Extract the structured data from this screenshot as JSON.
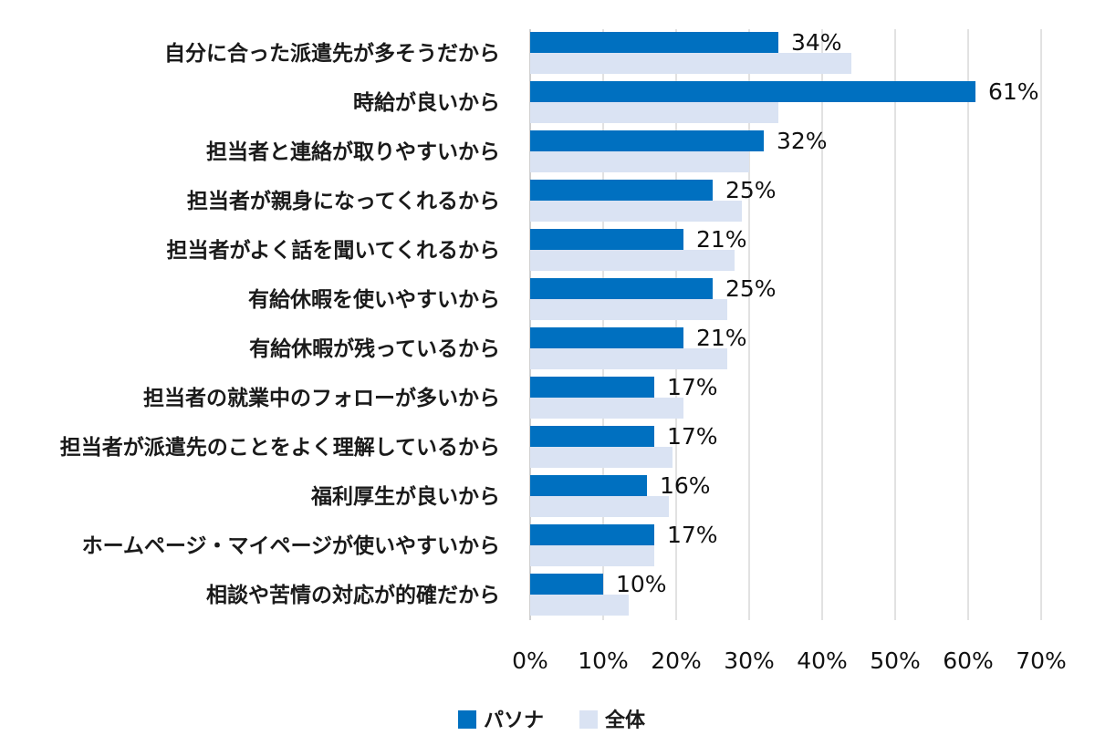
{
  "chart_data": {
    "type": "bar",
    "orientation": "horizontal",
    "categories": [
      "自分に合った派遣先が多そうだから",
      "時給が良いから",
      "担当者と連絡が取りやすいから",
      "担当者が親身になってくれるから",
      "担当者がよく話を聞いてくれるから",
      "有給休暇を使いやすいから",
      "有給休暇が残っているから",
      "担当者の就業中のフォローが多いから",
      "担当者が派遣先のことをよく理解しているから",
      "福利厚生が良いから",
      "ホームページ・マイページが使いやすいから",
      "相談や苦情の対応が的確だから"
    ],
    "series": [
      {
        "name": "パソナ",
        "color": "#0070c0",
        "values": [
          34,
          61,
          32,
          25,
          21,
          25,
          21,
          17,
          17,
          16,
          17,
          10
        ],
        "data_labels": [
          "34%",
          "61%",
          "32%",
          "25%",
          "21%",
          "25%",
          "21%",
          "17%",
          "17%",
          "16%",
          "17%",
          "10%"
        ]
      },
      {
        "name": "全体",
        "color": "#dae3f3",
        "values": [
          44,
          34,
          30,
          29,
          28,
          27,
          27,
          21,
          19.5,
          19,
          17,
          13.5
        ]
      }
    ],
    "xlim": [
      0,
      70
    ],
    "xticks": [
      0,
      10,
      20,
      30,
      40,
      50,
      60,
      70
    ],
    "xtick_labels": [
      "0%",
      "10%",
      "20%",
      "30%",
      "40%",
      "50%",
      "60%",
      "70%"
    ],
    "grid": "vertical",
    "legend_position": "bottom-center",
    "title": "",
    "xlabel": "",
    "ylabel": ""
  }
}
